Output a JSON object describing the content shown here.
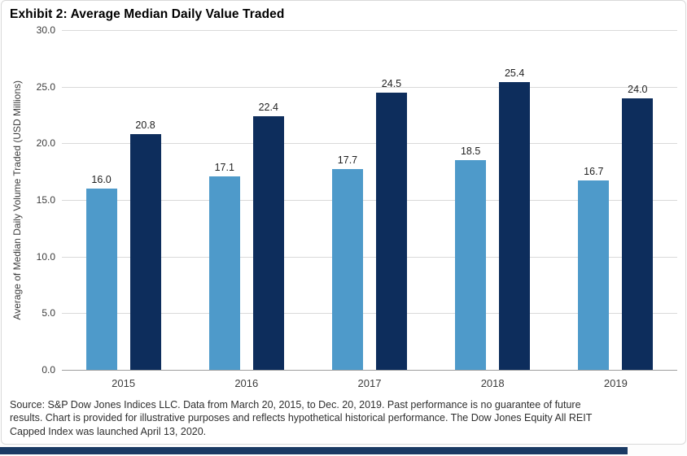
{
  "title": "Exhibit 2: Average Median Daily Value Traded",
  "chart_data": {
    "type": "bar",
    "title": "Exhibit 2: Average Median Daily Value Traded",
    "categories": [
      "2015",
      "2016",
      "2017",
      "2018",
      "2019"
    ],
    "series": [
      {
        "name": "light-blue-series",
        "color": "#4E9ACA",
        "values": [
          16.0,
          17.1,
          17.7,
          18.5,
          16.7
        ],
        "labels": [
          "16.0",
          "17.1",
          "17.7",
          "18.5",
          "16.7"
        ]
      },
      {
        "name": "dark-navy-series",
        "color": "#0D2D5C",
        "values": [
          20.8,
          22.4,
          24.5,
          25.4,
          24.0
        ],
        "labels": [
          "20.8",
          "22.4",
          "24.5",
          "25.4",
          "24.0"
        ]
      }
    ],
    "xlabel": "",
    "ylabel": "Average of Median Daily Volume Traded (USD Millions)",
    "ylim": [
      0,
      30
    ],
    "yticks": [
      0,
      5,
      10,
      15,
      20,
      25,
      30
    ],
    "ytick_labels": [
      "0.0",
      "5.0",
      "10.0",
      "15.0",
      "20.0",
      "25.0",
      "30.0"
    ],
    "grid": true,
    "legend": false,
    "value_labels_shown": true
  },
  "footer": {
    "source_lines": [
      "Source: S&P Dow Jones Indices LLC. Data from March 20, 2015, to Dec. 20, 2019. Past performance is no guarantee of future",
      "results. Chart is provided for illustrative purposes and reflects hypothetical historical performance. The Dow Jones Equity All REIT",
      "Capped Index was launched April 13, 2020."
    ]
  },
  "colors": {
    "bar_light": "#4E9ACA",
    "bar_dark": "#0D2D5C",
    "gridline": "#D9D9D9",
    "axis_line": "#9E9E9E",
    "card_border": "#D9D9D9",
    "accent_bottom_bar": "#1A3A64",
    "text": "#262626"
  }
}
